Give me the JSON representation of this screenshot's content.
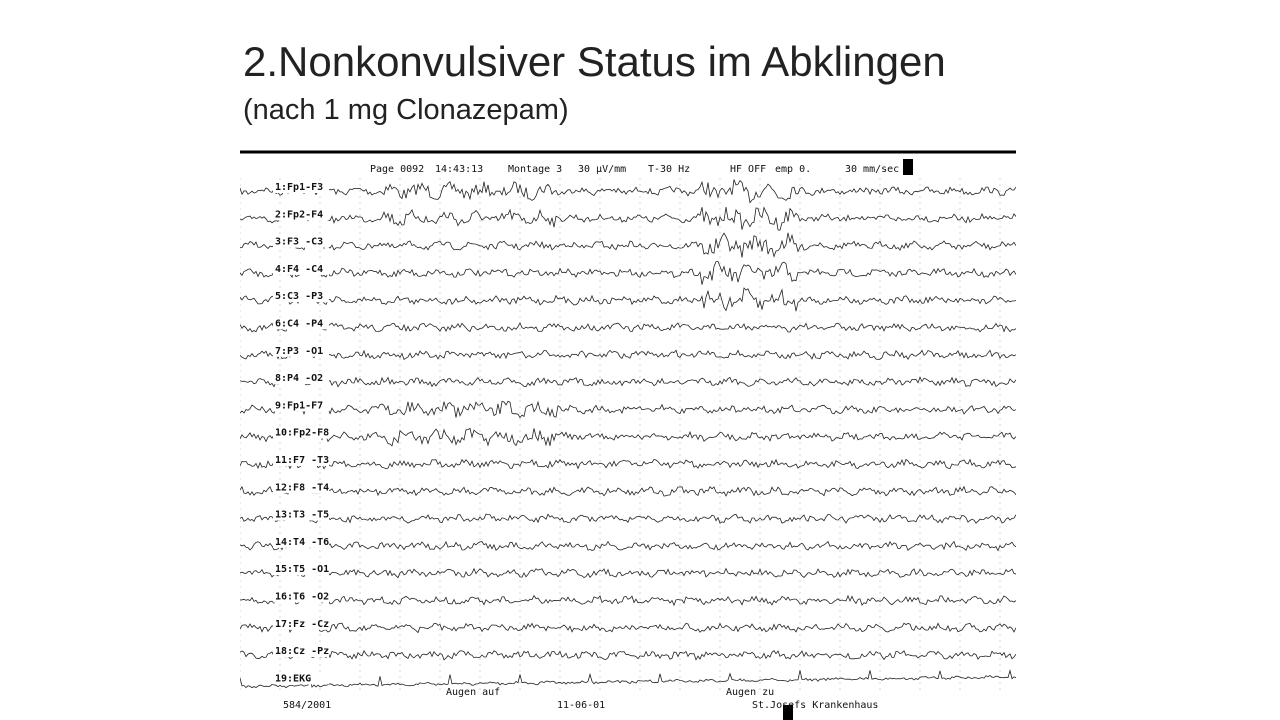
{
  "slide": {
    "title": "2.Nonkonvulsiver Status im Abklingen",
    "subtitle": "(nach 1 mg Clonazepam)",
    "eeg": {
      "header": [
        "Page 0092",
        "14:43:13",
        "Montage 3",
        "30 µV/mm",
        "T-30 Hz",
        "HF OFF",
        "emp 0.",
        "30 mm/sec"
      ],
      "channels": [
        "1:Fp1-F3",
        "2:Fp2-F4",
        "3:F3 -C3",
        "4:F4 -C4",
        "5:C3 -P3",
        "6:C4 -P4",
        "7:P3 -O1",
        "8:P4 -O2",
        "9:Fp1-F7",
        "10:Fp2-F8",
        "11:F7 -T3",
        "12:F8 -T4",
        "13:T3 -T5",
        "14:T4 -T6",
        "15:T5 -O1",
        "16:T6 -O2",
        "17:Fz -Cz",
        "18:Cz -Pz",
        "19:EKG"
      ],
      "footer": {
        "record": "584/2001",
        "event1": "Augen auf",
        "date": "11-06-01",
        "event2": "Augen zu",
        "hospital": "St.Josefs Krankenhaus"
      }
    }
  }
}
